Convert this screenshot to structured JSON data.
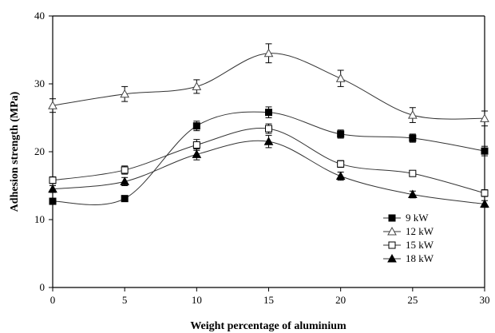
{
  "chart_data": {
    "type": "line",
    "xlabel": "Weight percentage of aluminium",
    "ylabel": "Adhesion strength (MPa)",
    "xlim": [
      0,
      30
    ],
    "ylim": [
      0,
      40
    ],
    "x_ticks": [
      0,
      5,
      10,
      15,
      20,
      25,
      30
    ],
    "y_ticks": [
      0,
      10,
      20,
      30,
      40
    ],
    "legend_position": "bottom-right",
    "grid": false,
    "x": [
      0,
      5,
      10,
      15,
      20,
      25,
      30
    ],
    "series": [
      {
        "name": "9 kW",
        "marker": "square-filled",
        "values": [
          12.7,
          13.1,
          23.8,
          25.8,
          22.6,
          22.0,
          20.1
        ],
        "errors": [
          0.4,
          0.4,
          0.7,
          0.8,
          0.6,
          0.6,
          0.7
        ]
      },
      {
        "name": "12 kW",
        "marker": "triangle-open",
        "values": [
          26.8,
          28.5,
          29.6,
          34.5,
          30.8,
          25.4,
          24.9
        ],
        "errors": [
          1.0,
          1.1,
          1.0,
          1.4,
          1.2,
          1.1,
          1.1
        ]
      },
      {
        "name": "15 kW",
        "marker": "square-open",
        "values": [
          15.8,
          17.3,
          21.0,
          23.4,
          18.2,
          16.8,
          13.9
        ],
        "errors": [
          0.5,
          0.6,
          0.8,
          0.7,
          0.5,
          0.4,
          0.5
        ]
      },
      {
        "name": "18 kW",
        "marker": "triangle-filled",
        "values": [
          14.5,
          15.6,
          19.6,
          21.5,
          16.4,
          13.7,
          12.3
        ],
        "errors": [
          0.5,
          0.6,
          0.8,
          0.9,
          0.6,
          0.5,
          0.5
        ]
      }
    ]
  }
}
